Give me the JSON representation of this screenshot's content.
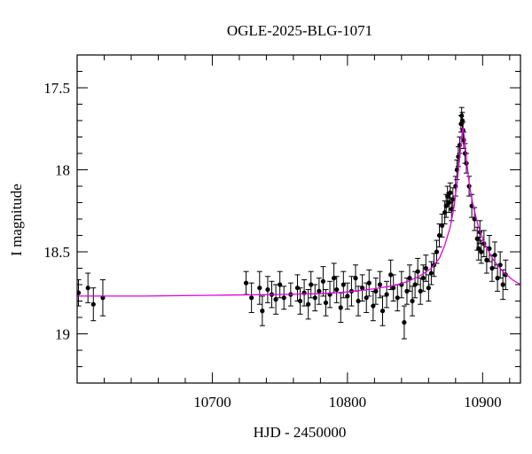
{
  "chart_data": {
    "type": "scatter",
    "title": "OGLE-2025-BLG-1071",
    "xlabel": "HJD - 2450000",
    "ylabel": "I magnitude",
    "xlim": [
      10600,
      10928
    ],
    "ylim": [
      19.3,
      17.3
    ],
    "y_inverted": true,
    "x_ticks": [
      10700,
      10800,
      10900
    ],
    "y_ticks": [
      17.5,
      18,
      18.5,
      19
    ],
    "x_tick_labels": [
      "10700",
      "10800",
      "10900"
    ],
    "y_tick_labels": [
      "17.5",
      "18",
      "18.5",
      "19"
    ],
    "x_minor_step": 20,
    "y_minor_step": 0.1,
    "grid": false,
    "legend": "none",
    "colors": {
      "points": "#000000",
      "model": "#e000e0",
      "axes": "#000000"
    },
    "model": {
      "name": "",
      "points": [
        [
          10600,
          18.77
        ],
        [
          10650,
          18.77
        ],
        [
          10700,
          18.765
        ],
        [
          10750,
          18.76
        ],
        [
          10780,
          18.755
        ],
        [
          10800,
          18.745
        ],
        [
          10820,
          18.725
        ],
        [
          10835,
          18.705
        ],
        [
          10845,
          18.68
        ],
        [
          10855,
          18.64
        ],
        [
          10862,
          18.6
        ],
        [
          10868,
          18.54
        ],
        [
          10872,
          18.46
        ],
        [
          10876,
          18.35
        ],
        [
          10879,
          18.22
        ],
        [
          10881,
          18.08
        ],
        [
          10883,
          17.93
        ],
        [
          10884.5,
          17.8
        ],
        [
          10885.5,
          17.74
        ],
        [
          10886.5,
          17.8
        ],
        [
          10888,
          17.93
        ],
        [
          10890,
          18.08
        ],
        [
          10893,
          18.22
        ],
        [
          10897,
          18.35
        ],
        [
          10902,
          18.46
        ],
        [
          10908,
          18.55
        ],
        [
          10915,
          18.62
        ],
        [
          10922,
          18.67
        ],
        [
          10928,
          18.7
        ]
      ]
    },
    "series": [
      {
        "name": "",
        "points": [
          [
            10601,
            18.75,
            0.08
          ],
          [
            10608,
            18.72,
            0.09
          ],
          [
            10612,
            18.82,
            0.1
          ],
          [
            10619,
            18.78,
            0.11
          ],
          [
            10725,
            18.69,
            0.07
          ],
          [
            10729,
            18.78,
            0.09
          ],
          [
            10735,
            18.72,
            0.1
          ],
          [
            10737,
            18.86,
            0.09
          ],
          [
            10741,
            18.73,
            0.08
          ],
          [
            10744,
            18.76,
            0.08
          ],
          [
            10747,
            18.79,
            0.09
          ],
          [
            10750,
            18.7,
            0.08
          ],
          [
            10753,
            18.78,
            0.07
          ],
          [
            10758,
            18.76,
            0.07
          ],
          [
            10763,
            18.72,
            0.08
          ],
          [
            10765,
            18.8,
            0.08
          ],
          [
            10768,
            18.75,
            0.08
          ],
          [
            10771,
            18.82,
            0.09
          ],
          [
            10773,
            18.7,
            0.08
          ],
          [
            10776,
            18.78,
            0.08
          ],
          [
            10779,
            18.74,
            0.08
          ],
          [
            10782,
            18.68,
            0.09
          ],
          [
            10784,
            18.81,
            0.08
          ],
          [
            10787,
            18.76,
            0.08
          ],
          [
            10790,
            18.66,
            0.09
          ],
          [
            10792,
            18.73,
            0.08
          ],
          [
            10795,
            18.84,
            0.09
          ],
          [
            10797,
            18.7,
            0.08
          ],
          [
            10800,
            18.77,
            0.08
          ],
          [
            10803,
            18.74,
            0.09
          ],
          [
            10806,
            18.66,
            0.08
          ],
          [
            10808,
            18.8,
            0.09
          ],
          [
            10811,
            18.72,
            0.08
          ],
          [
            10814,
            18.78,
            0.09
          ],
          [
            10816,
            18.69,
            0.08
          ],
          [
            10819,
            18.83,
            0.09
          ],
          [
            10821,
            18.74,
            0.08
          ],
          [
            10824,
            18.7,
            0.08
          ],
          [
            10826,
            18.86,
            0.09
          ],
          [
            10829,
            18.76,
            0.08
          ],
          [
            10832,
            18.64,
            0.09
          ],
          [
            10834,
            18.72,
            0.08
          ],
          [
            10837,
            18.78,
            0.08
          ],
          [
            10840,
            18.7,
            0.08
          ],
          [
            10842,
            18.93,
            0.1
          ],
          [
            10844,
            18.74,
            0.08
          ],
          [
            10846,
            18.66,
            0.08
          ],
          [
            10848,
            18.8,
            0.09
          ],
          [
            10850,
            18.7,
            0.08
          ],
          [
            10852,
            18.62,
            0.08
          ],
          [
            10854,
            18.74,
            0.08
          ],
          [
            10856,
            18.66,
            0.08
          ],
          [
            10858,
            18.6,
            0.08
          ],
          [
            10860,
            18.72,
            0.08
          ],
          [
            10862,
            18.63,
            0.07
          ],
          [
            10864,
            18.58,
            0.07
          ],
          [
            10866,
            18.5,
            0.07
          ],
          [
            10868,
            18.4,
            0.07
          ],
          [
            10870,
            18.34,
            0.07
          ],
          [
            10872,
            18.26,
            0.07
          ],
          [
            10873,
            18.22,
            0.07
          ],
          [
            10874,
            18.16,
            0.06
          ],
          [
            10875,
            18.2,
            0.06
          ],
          [
            10876,
            18.14,
            0.06
          ],
          [
            10877,
            18.24,
            0.07
          ],
          [
            10878,
            18.18,
            0.07
          ],
          [
            10880,
            18.1,
            0.06
          ],
          [
            10881,
            18.0,
            0.06
          ],
          [
            10882,
            17.92,
            0.06
          ],
          [
            10883,
            17.85,
            0.05
          ],
          [
            10884,
            17.72,
            0.05
          ],
          [
            10884.5,
            17.67,
            0.05
          ],
          [
            10885,
            17.7,
            0.05
          ],
          [
            10885.5,
            17.76,
            0.05
          ],
          [
            10886,
            17.82,
            0.05
          ],
          [
            10887,
            17.9,
            0.06
          ],
          [
            10888,
            17.96,
            0.06
          ],
          [
            10890,
            18.1,
            0.06
          ],
          [
            10892,
            18.22,
            0.07
          ],
          [
            10894,
            18.3,
            0.07
          ],
          [
            10896,
            18.42,
            0.07
          ],
          [
            10897,
            18.48,
            0.07
          ],
          [
            10898,
            18.38,
            0.07
          ],
          [
            10899,
            18.5,
            0.07
          ],
          [
            10901,
            18.45,
            0.08
          ],
          [
            10903,
            18.55,
            0.08
          ],
          [
            10905,
            18.48,
            0.08
          ],
          [
            10907,
            18.6,
            0.08
          ],
          [
            10909,
            18.52,
            0.08
          ],
          [
            10911,
            18.66,
            0.08
          ],
          [
            10913,
            18.58,
            0.08
          ],
          [
            10915,
            18.7,
            0.09
          ],
          [
            10917,
            18.64,
            0.09
          ]
        ]
      }
    ]
  }
}
